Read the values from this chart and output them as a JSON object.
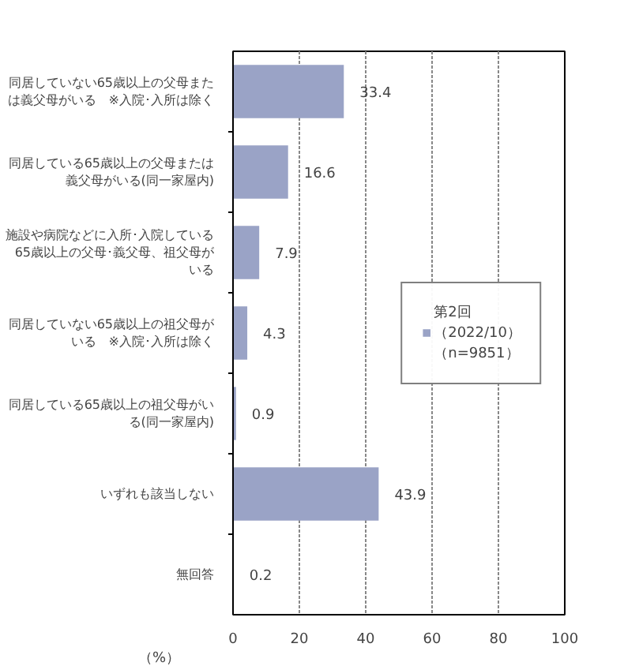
{
  "chart_data": {
    "type": "bar",
    "orientation": "horizontal",
    "categories": [
      "同居していない65歳以上の父母または義父母がいる　※入院･入所は除く",
      "同居している65歳以上の父母または義父母がいる(同一家屋内)",
      "施設や病院などに入所･入院している65歳以上の父母･義父母、祖父母がいる",
      "同居していない65歳以上の祖父母がいる　※入院･入所は除く",
      "同居している65歳以上の祖父母がいる(同一家屋内)",
      "いずれも該当しない",
      "無回答"
    ],
    "series": [
      {
        "name": "第2回（2022/10）（n=9851）",
        "color": "#9aa3c6",
        "values": [
          33.4,
          16.6,
          7.9,
          4.3,
          0.9,
          43.9,
          0.2
        ]
      }
    ],
    "xlabel": "（%）",
    "xlim": [
      0,
      100
    ],
    "xticks": [
      0,
      20,
      40,
      60,
      80,
      100
    ],
    "grid": "x",
    "legend": "right",
    "data_labels": true
  }
}
